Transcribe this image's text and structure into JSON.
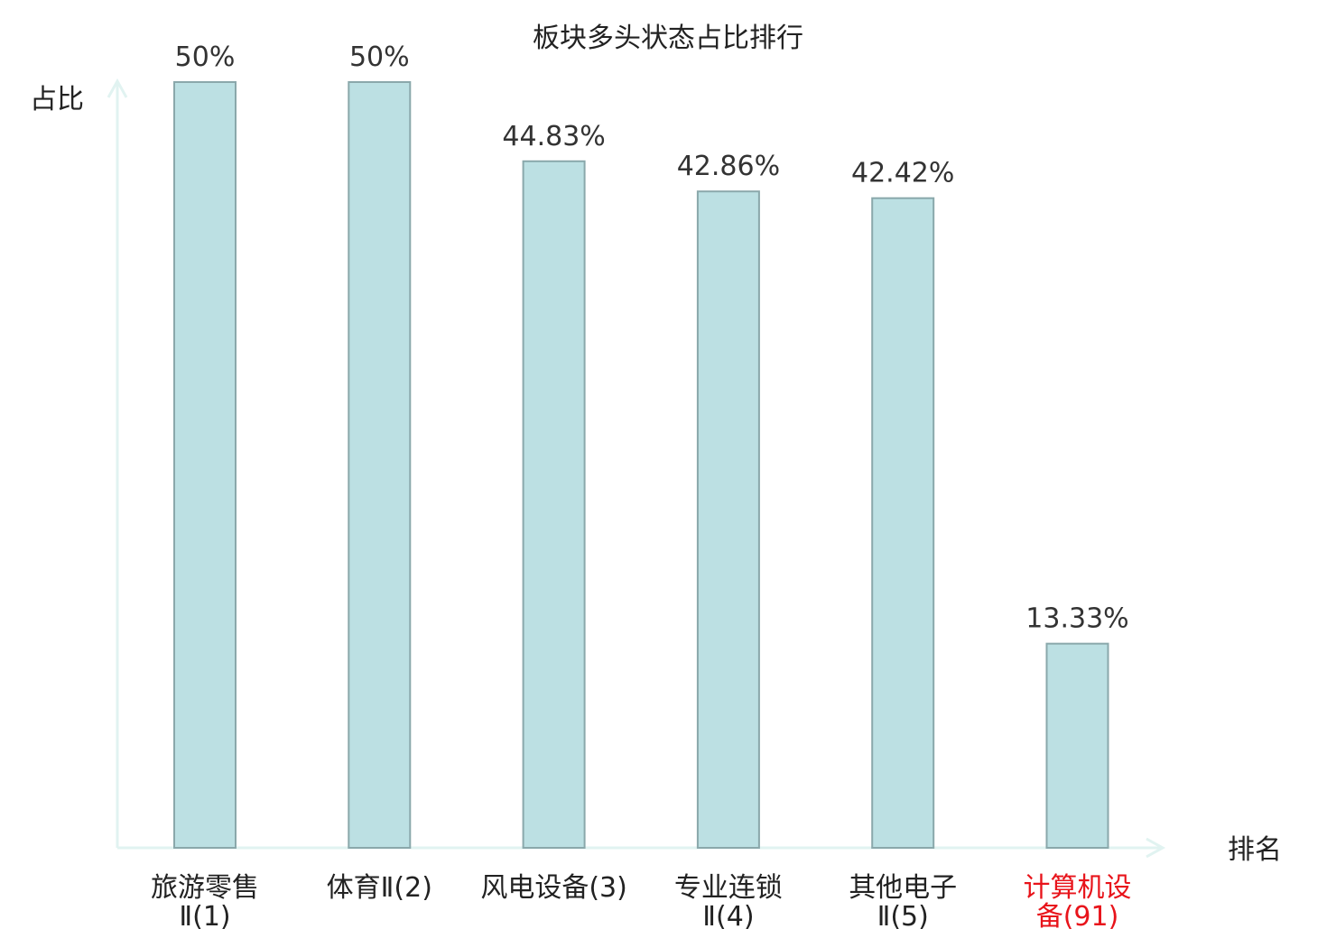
{
  "chart_data": {
    "type": "bar",
    "title": "板块多头状态占比排行",
    "ylabel": "占比",
    "xlabel": "排名",
    "ylim": [
      0,
      50
    ],
    "grid": false,
    "categories": [
      {
        "line1": "旅游零售",
        "line2": "Ⅱ(1)",
        "highlight": false
      },
      {
        "line1": "体育Ⅱ(2)",
        "line2": "",
        "highlight": false
      },
      {
        "line1": "风电设备(3)",
        "line2": "",
        "highlight": false
      },
      {
        "line1": "专业连锁",
        "line2": "Ⅱ(4)",
        "highlight": false
      },
      {
        "line1": "其他电子",
        "line2": "Ⅱ(5)",
        "highlight": false
      },
      {
        "line1": "计算机设",
        "line2": "备(91)",
        "highlight": true
      }
    ],
    "values": [
      50,
      50,
      44.83,
      42.86,
      42.42,
      13.33
    ],
    "value_labels": [
      "50%",
      "50%",
      "44.83%",
      "42.86%",
      "42.42%",
      "13.33%"
    ]
  },
  "colors": {
    "bar_fill": "#bce0e3",
    "bar_stroke": "#8aa8ab",
    "axis": "#e1f3f1",
    "text": "#222222",
    "value_text": "#333333",
    "highlight_text": "#e8141b"
  }
}
